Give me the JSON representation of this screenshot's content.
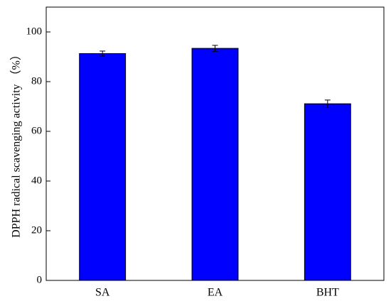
{
  "chart_data": {
    "type": "bar",
    "y_label": "DPPH radical scavenging activity （%）",
    "categories": [
      "SA",
      "EA",
      "BHT"
    ],
    "values": [
      91.3,
      93.4,
      71.1
    ],
    "errors": [
      1.0,
      1.2,
      1.5
    ],
    "color": "#0000ff",
    "ylim": [
      0,
      110
    ],
    "yticks": [
      0,
      20,
      40,
      60,
      80,
      100
    ]
  }
}
